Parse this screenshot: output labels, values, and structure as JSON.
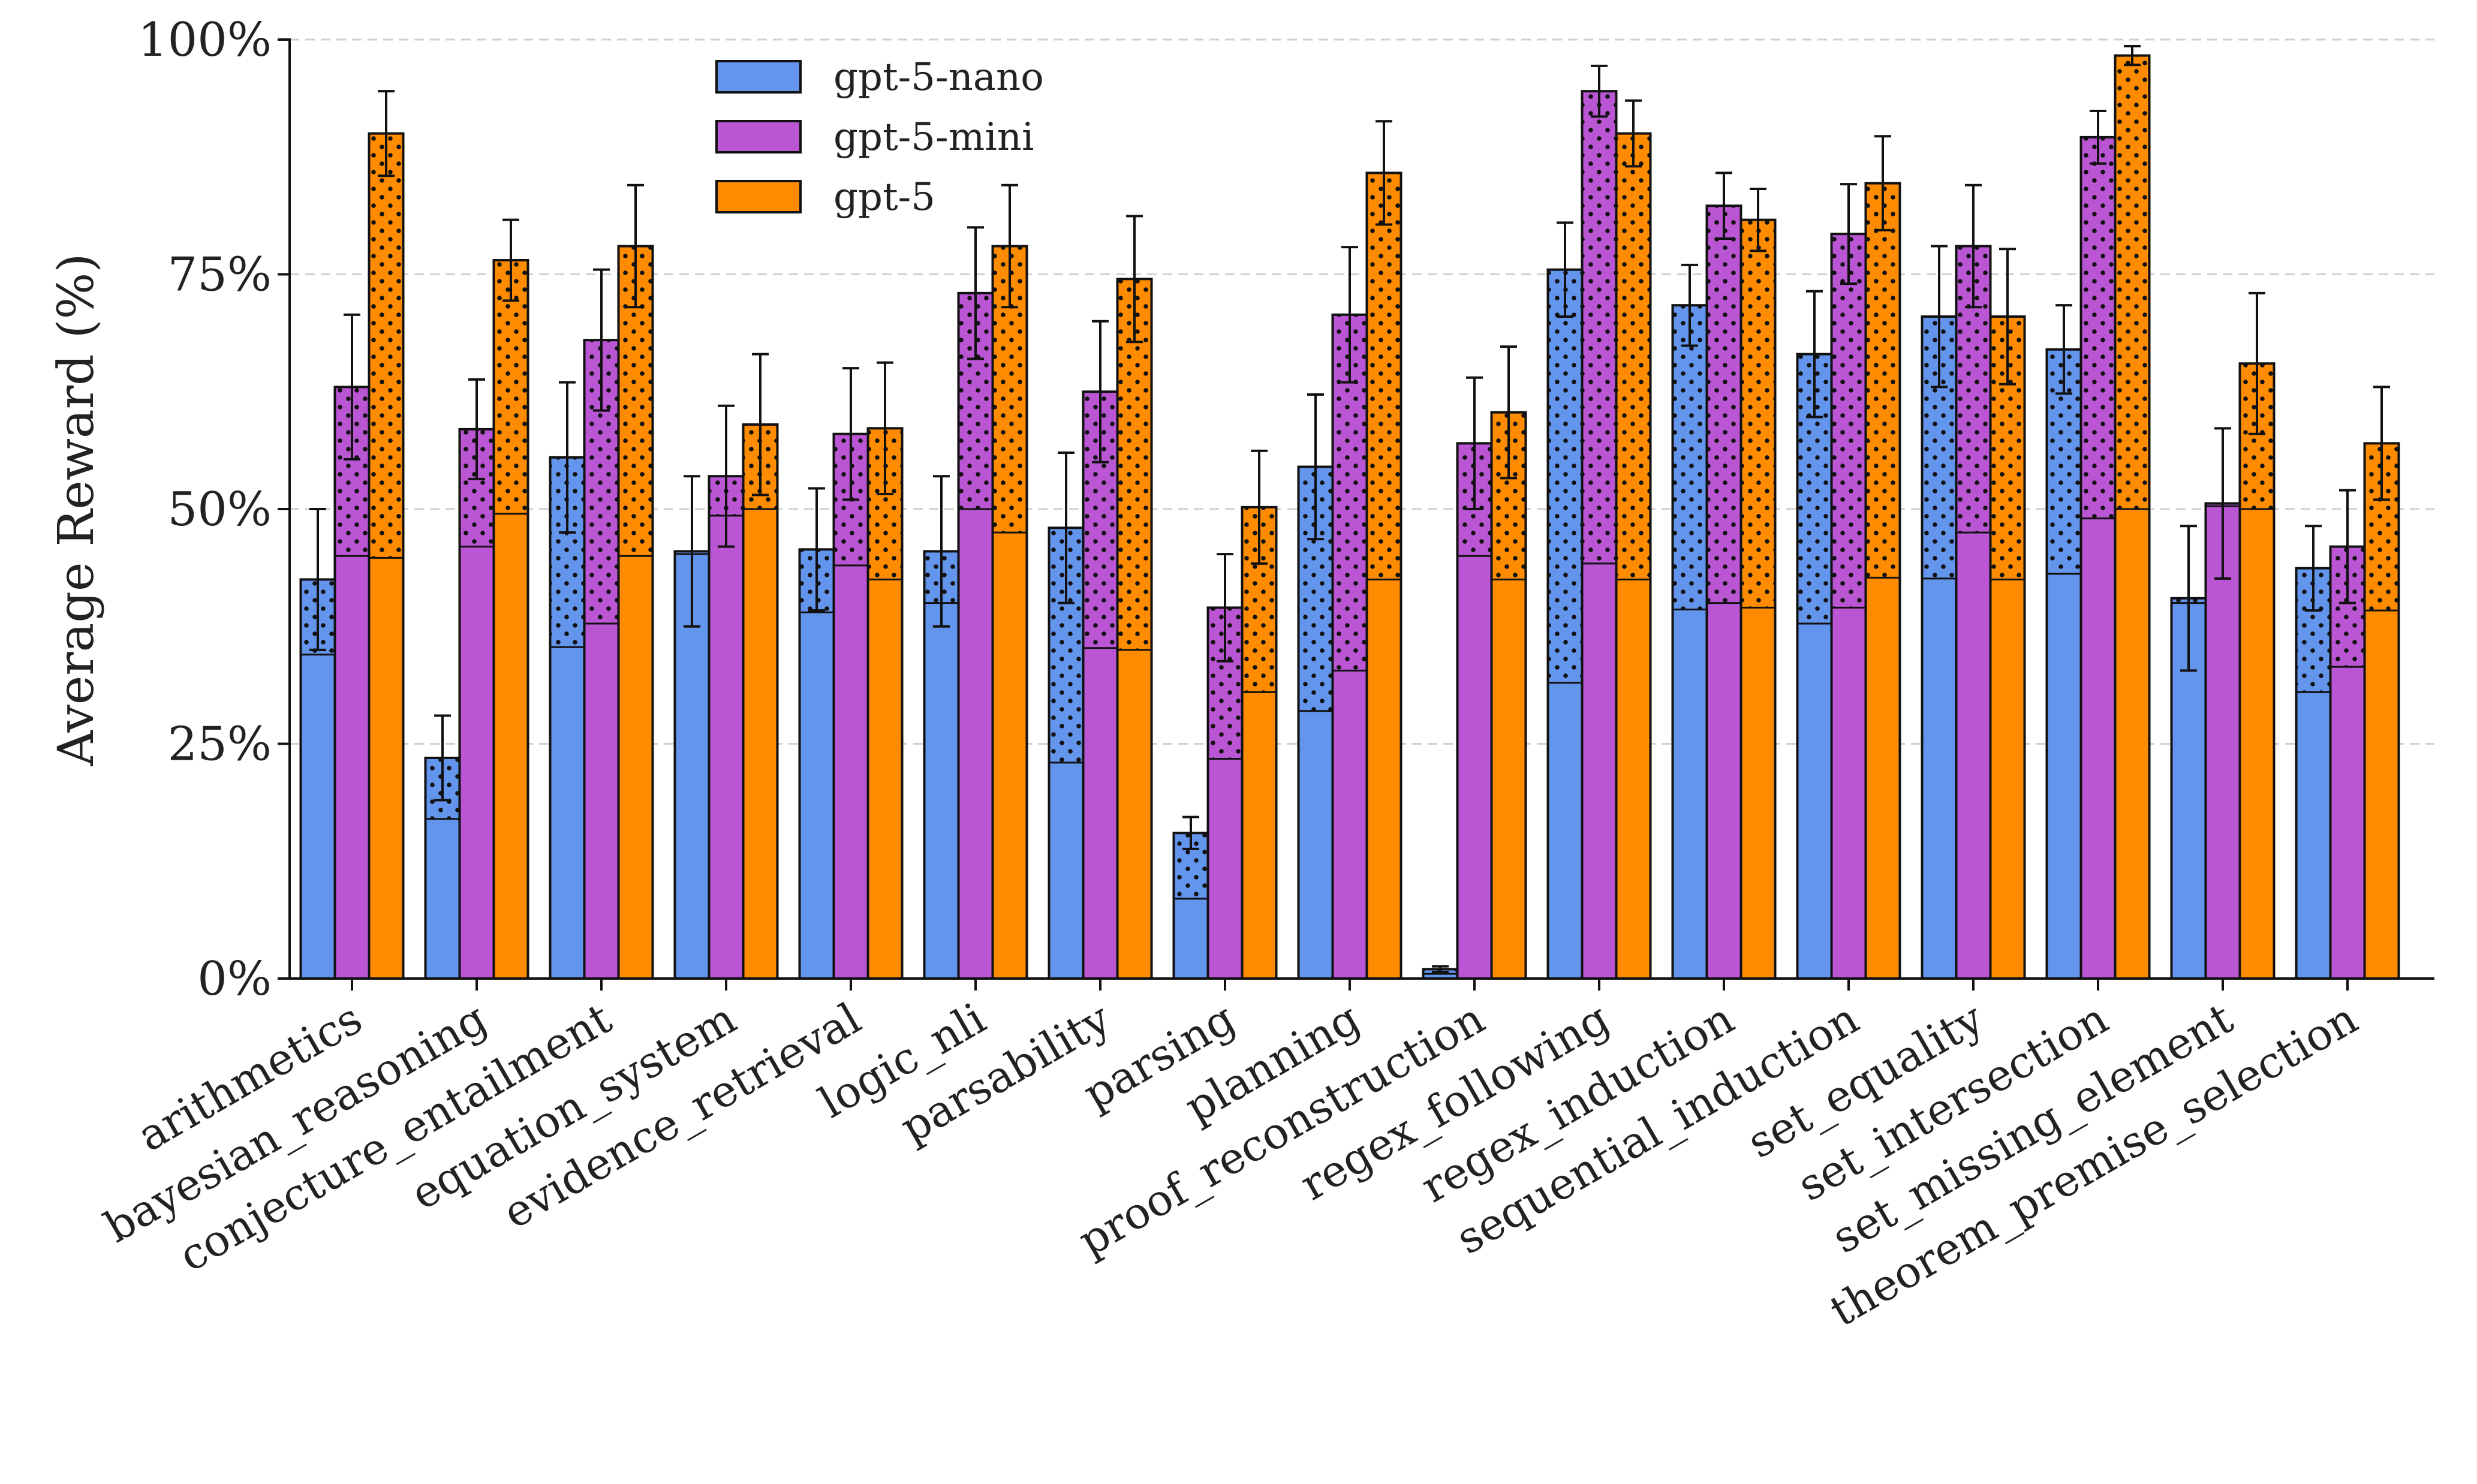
{
  "chart_data": {
    "type": "bar",
    "title": "",
    "xlabel": "",
    "ylabel": "Average Reward (%)",
    "ylim": [
      0,
      100
    ],
    "yticks": [
      {
        "value": 0,
        "label": "0%"
      },
      {
        "value": 25,
        "label": "25%"
      },
      {
        "value": 50,
        "label": "50%"
      },
      {
        "value": 75,
        "label": "75%"
      },
      {
        "value": 100,
        "label": "100%"
      }
    ],
    "grid": "horizontal dashed",
    "legend_position": "top-left",
    "bar_style": "stacked: solid lower part (base value) with dotted upper part up to the total value",
    "categories": [
      "arithmetics",
      "bayesian_reasoning",
      "conjecture_entailment",
      "equation_system",
      "evidence_retrieval",
      "logic_nli",
      "parsability",
      "parsing",
      "planning",
      "proof_reconstruction",
      "regex_following",
      "regex_induction",
      "sequential_induction",
      "set_equality",
      "set_intersection",
      "set_missing_element",
      "theorem_premise_selection"
    ],
    "series": [
      {
        "name": "gpt-5-nano",
        "color": "#6495ED",
        "values": [
          42.5,
          23.5,
          55.5,
          45.5,
          45.7,
          45.5,
          48.0,
          15.5,
          54.5,
          1.0,
          75.5,
          71.7,
          66.5,
          70.5,
          67.0,
          40.5,
          43.7
        ],
        "base_values": [
          34.5,
          17.0,
          35.3,
          45.2,
          39.0,
          40.0,
          23.0,
          8.5,
          28.5,
          0.5,
          31.5,
          39.3,
          37.8,
          42.6,
          43.1,
          40.0,
          30.5
        ],
        "error": [
          7.5,
          4.5,
          8.0,
          8.0,
          6.5,
          8.0,
          8.0,
          1.7,
          7.7,
          0.3,
          5.0,
          4.3,
          6.7,
          7.5,
          4.7,
          7.7,
          4.5
        ]
      },
      {
        "name": "gpt-5-mini",
        "color": "#BA55D3",
        "values": [
          63.0,
          58.5,
          68.0,
          53.5,
          58.0,
          73.0,
          62.5,
          39.5,
          70.7,
          57.0,
          94.5,
          82.3,
          79.3,
          78.0,
          89.6,
          50.6,
          46.0
        ],
        "base_values": [
          45.0,
          46.0,
          37.8,
          49.3,
          44.0,
          50.0,
          35.2,
          23.4,
          32.8,
          45.0,
          44.2,
          40.0,
          39.5,
          47.5,
          49.0,
          50.3,
          33.2
        ],
        "error": [
          7.7,
          5.3,
          7.5,
          7.5,
          7.0,
          7.0,
          7.5,
          5.7,
          7.2,
          7.0,
          2.7,
          3.5,
          5.3,
          6.5,
          2.8,
          8.0,
          6.0
        ]
      },
      {
        "name": "gpt-5",
        "color": "#FF8C00",
        "values": [
          90.0,
          76.5,
          78.0,
          59.0,
          58.6,
          78.0,
          74.5,
          50.2,
          85.8,
          60.3,
          90.0,
          80.8,
          84.7,
          70.5,
          98.3,
          65.5,
          57.0
        ],
        "base_values": [
          44.8,
          49.5,
          45.0,
          50.0,
          42.5,
          47.5,
          35.0,
          30.5,
          42.5,
          42.5,
          42.5,
          39.5,
          42.7,
          42.5,
          50.0,
          50.0,
          39.2
        ],
        "error": [
          4.5,
          4.3,
          6.5,
          7.5,
          7.0,
          6.5,
          6.7,
          6.0,
          5.5,
          7.0,
          3.5,
          3.3,
          5.0,
          7.2,
          1.0,
          7.5,
          6.0
        ]
      }
    ]
  }
}
